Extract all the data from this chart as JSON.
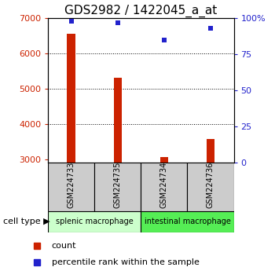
{
  "title": "GDS2982 / 1422045_a_at",
  "samples": [
    "GSM224733",
    "GSM224735",
    "GSM224734",
    "GSM224736"
  ],
  "counts": [
    6550,
    5300,
    3060,
    3580
  ],
  "percentile_ranks": [
    98,
    97,
    85,
    93
  ],
  "ylim_left": [
    2900,
    7000
  ],
  "ylim_right": [
    0,
    100
  ],
  "yticks_left": [
    3000,
    4000,
    5000,
    6000,
    7000
  ],
  "yticks_right": [
    0,
    25,
    50,
    75,
    100
  ],
  "bar_color": "#cc2200",
  "dot_color": "#2222cc",
  "bar_bottom": 2900,
  "cell_types": [
    {
      "label": "splenic macrophage",
      "samples": [
        0,
        1
      ],
      "color": "#ccffcc"
    },
    {
      "label": "intestinal macrophage",
      "samples": [
        2,
        3
      ],
      "color": "#55ee55"
    }
  ],
  "cell_type_label": "cell type",
  "legend_count_label": "count",
  "legend_pct_label": "percentile rank within the sample",
  "grid_yticks": [
    4000,
    5000,
    6000
  ],
  "sample_box_color": "#cccccc",
  "tick_label_color_left": "#cc2200",
  "tick_label_color_right": "#2222cc",
  "title_fontsize": 11,
  "axis_fontsize": 8,
  "legend_fontsize": 8,
  "bar_width": 0.18
}
